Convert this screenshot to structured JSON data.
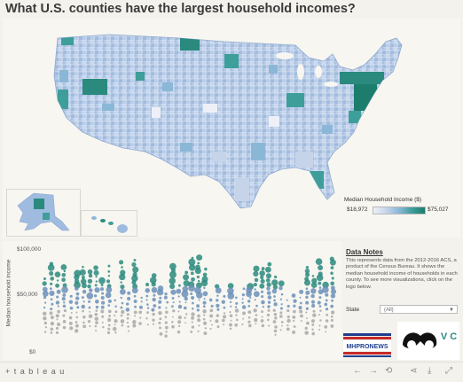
{
  "title": "What U.S. counties have the largest household incomes?",
  "legend": {
    "title": "Median Household Income ($)",
    "min_label": "$18,972",
    "max_label": "$75,027",
    "colors": [
      "#eef0f8",
      "#c6d4ea",
      "#8bb7d6",
      "#3e9e9a",
      "#1c7d6c"
    ]
  },
  "plot": {
    "ylabel": "Median household income",
    "ticks": [
      "$100,000",
      "$50,000",
      "$0"
    ],
    "dot_colors": {
      "low": "#a8a8a8",
      "mid": "#6b8fb8",
      "high": "#2a8a7e"
    }
  },
  "notes": {
    "title": "Data Notes",
    "body": "This represents data from the 2012-2016 ACS, a product of the Census Bureau. It shows the median household income of households in each county. To see more visualizations, click on the logo below."
  },
  "filter": {
    "label": "State",
    "value": "(All)"
  },
  "logos": {
    "left_text": "MHPRONEWS",
    "right_text": "V C"
  },
  "footer": {
    "brand": "+ t a b l e a u"
  },
  "icons": [
    "undo-icon",
    "redo-icon",
    "revert-icon",
    "share-icon",
    "download-icon",
    "fullscreen-icon"
  ]
}
